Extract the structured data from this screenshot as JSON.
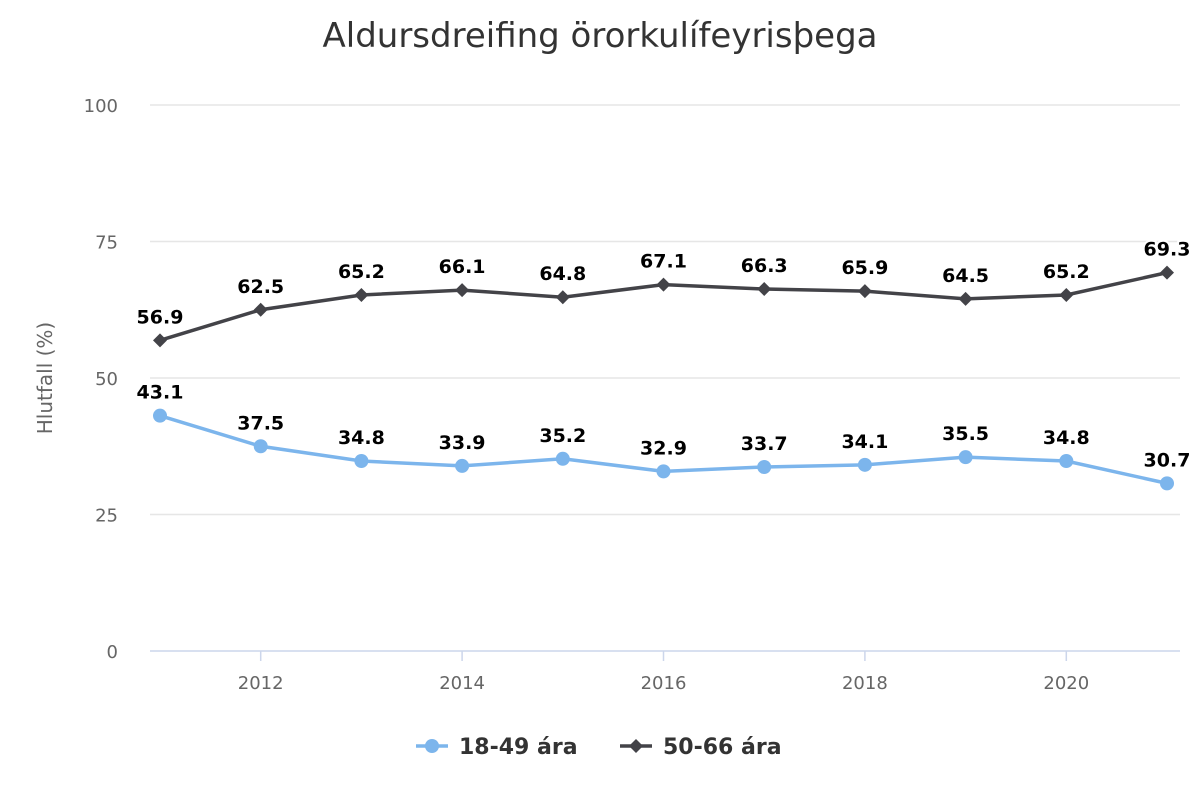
{
  "chart_data": {
    "type": "line",
    "title": "Aldursdreifing örorkulífeyrisþega",
    "xlabel": "",
    "ylabel": "Hlutfall (%)",
    "x": [
      2011,
      2012,
      2013,
      2014,
      2015,
      2016,
      2017,
      2018,
      2019,
      2020,
      2021
    ],
    "xticks": [
      "2012",
      "2014",
      "2016",
      "2018",
      "2020"
    ],
    "yticks": [
      "0",
      "25",
      "50",
      "75",
      "100"
    ],
    "ylim": [
      0,
      100
    ],
    "grid": true,
    "legend_position": "bottom",
    "series": [
      {
        "name": "18-49 ára",
        "color": "#7cb5ec",
        "marker": "circle",
        "values": [
          43.1,
          37.5,
          34.8,
          33.9,
          35.2,
          32.9,
          33.7,
          34.1,
          35.5,
          34.8,
          30.7
        ]
      },
      {
        "name": "50-66 ára",
        "color": "#434348",
        "marker": "diamond",
        "values": [
          56.9,
          62.5,
          65.2,
          66.1,
          64.8,
          67.1,
          66.3,
          65.9,
          64.5,
          65.2,
          69.3
        ]
      }
    ]
  }
}
